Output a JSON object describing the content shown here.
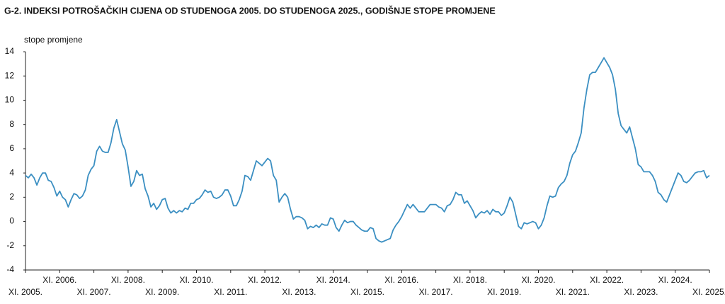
{
  "chart_data": {
    "type": "line",
    "title": "G-2.  INDEKSI POTROŠAČKIH CIJENA OD STUDENOGA 2005. DO STUDENOGA 2025., GODIŠNJE STOPE PROMJENE",
    "y_label": "stope promjene",
    "categories": [
      "XI. 2005.",
      null,
      null,
      null,
      null,
      null,
      null,
      null,
      null,
      null,
      null,
      null,
      "XI. 2006.",
      null,
      null,
      null,
      null,
      null,
      null,
      null,
      null,
      null,
      null,
      null,
      "XI. 2007.",
      null,
      null,
      null,
      null,
      null,
      null,
      null,
      null,
      null,
      null,
      null,
      "XI. 2008.",
      null,
      null,
      null,
      null,
      null,
      null,
      null,
      null,
      null,
      null,
      null,
      "XI. 2009.",
      null,
      null,
      null,
      null,
      null,
      null,
      null,
      null,
      null,
      null,
      null,
      "XI. 2010.",
      null,
      null,
      null,
      null,
      null,
      null,
      null,
      null,
      null,
      null,
      null,
      "XI. 2011.",
      null,
      null,
      null,
      null,
      null,
      null,
      null,
      null,
      null,
      null,
      null,
      "XI. 2012.",
      null,
      null,
      null,
      null,
      null,
      null,
      null,
      null,
      null,
      null,
      null,
      "XI. 2013.",
      null,
      null,
      null,
      null,
      null,
      null,
      null,
      null,
      null,
      null,
      null,
      "XI. 2014.",
      null,
      null,
      null,
      null,
      null,
      null,
      null,
      null,
      null,
      null,
      null,
      "XI. 2015.",
      null,
      null,
      null,
      null,
      null,
      null,
      null,
      null,
      null,
      null,
      null,
      "XI. 2016.",
      null,
      null,
      null,
      null,
      null,
      null,
      null,
      null,
      null,
      null,
      null,
      "XI. 2017.",
      null,
      null,
      null,
      null,
      null,
      null,
      null,
      null,
      null,
      null,
      null,
      "XI. 2018.",
      null,
      null,
      null,
      null,
      null,
      null,
      null,
      null,
      null,
      null,
      null,
      "XI. 2019.",
      null,
      null,
      null,
      null,
      null,
      null,
      null,
      null,
      null,
      null,
      null,
      "XI. 2020.",
      null,
      null,
      null,
      null,
      null,
      null,
      null,
      null,
      null,
      null,
      null,
      "XI. 2021.",
      null,
      null,
      null,
      null,
      null,
      null,
      null,
      null,
      null,
      null,
      null,
      "XI. 2022.",
      null,
      null,
      null,
      null,
      null,
      null,
      null,
      null,
      null,
      null,
      null,
      "XI. 2023.",
      null,
      null,
      null,
      null,
      null,
      null,
      null,
      null,
      null,
      null,
      null,
      "XI. 2024.",
      null,
      null,
      null,
      null,
      null,
      null,
      null,
      null,
      null,
      null,
      null,
      "XI. 2025."
    ],
    "series": [
      {
        "color": "#3b8fc2",
        "values": [
          3.8,
          3.6,
          3.9,
          3.6,
          3.0,
          3.6,
          4.0,
          4.0,
          3.4,
          3.3,
          2.8,
          2.1,
          2.5,
          2.0,
          1.8,
          1.2,
          1.8,
          2.3,
          2.2,
          1.9,
          2.1,
          2.6,
          3.8,
          4.3,
          4.6,
          5.8,
          6.2,
          5.8,
          5.7,
          5.7,
          6.5,
          7.7,
          8.4,
          7.4,
          6.4,
          5.9,
          4.5,
          2.9,
          3.3,
          4.2,
          3.8,
          3.9,
          2.7,
          2.1,
          1.2,
          1.5,
          1.0,
          1.3,
          1.8,
          1.9,
          1.1,
          0.7,
          0.9,
          0.7,
          0.9,
          0.8,
          1.1,
          1.0,
          1.5,
          1.5,
          1.8,
          1.9,
          2.2,
          2.6,
          2.4,
          2.5,
          2.0,
          1.9,
          2.0,
          2.2,
          2.6,
          2.6,
          2.1,
          1.3,
          1.3,
          1.8,
          2.5,
          3.8,
          3.7,
          3.4,
          4.2,
          5.0,
          4.8,
          4.6,
          4.9,
          5.2,
          5.0,
          3.8,
          3.4,
          1.6,
          2.0,
          2.3,
          2.0,
          1.0,
          0.2,
          0.4,
          0.4,
          0.3,
          0.1,
          -0.6,
          -0.4,
          -0.5,
          -0.3,
          -0.5,
          -0.2,
          -0.3,
          -0.3,
          0.3,
          0.2,
          -0.5,
          -0.8,
          -0.3,
          0.1,
          -0.1,
          0.0,
          0.0,
          -0.3,
          -0.5,
          -0.7,
          -0.8,
          -0.8,
          -0.5,
          -0.6,
          -1.4,
          -1.6,
          -1.7,
          -1.6,
          -1.5,
          -1.4,
          -0.7,
          -0.3,
          0.0,
          0.4,
          0.9,
          1.4,
          1.1,
          1.4,
          1.1,
          0.8,
          0.8,
          0.8,
          1.1,
          1.4,
          1.4,
          1.4,
          1.2,
          1.1,
          0.8,
          1.3,
          1.4,
          1.8,
          2.4,
          2.2,
          2.2,
          1.5,
          1.7,
          1.3,
          0.9,
          0.3,
          0.6,
          0.8,
          0.7,
          0.9,
          0.6,
          1.0,
          0.8,
          0.8,
          0.5,
          0.7,
          1.3,
          2.0,
          1.6,
          0.6,
          -0.4,
          -0.6,
          -0.1,
          -0.2,
          -0.1,
          0.0,
          -0.1,
          -0.6,
          -0.3,
          0.3,
          1.3,
          2.1,
          2.0,
          2.1,
          2.8,
          3.1,
          3.3,
          3.8,
          4.8,
          5.5,
          5.8,
          6.5,
          7.3,
          9.4,
          10.9,
          12.1,
          12.3,
          12.3,
          12.7,
          13.1,
          13.5,
          13.1,
          12.7,
          12.1,
          10.9,
          8.9,
          7.9,
          7.6,
          7.3,
          7.8,
          6.9,
          6.0,
          4.7,
          4.5,
          4.1,
          4.1,
          4.1,
          3.8,
          3.3,
          2.4,
          2.2,
          1.8,
          1.6,
          2.2,
          2.8,
          3.4,
          4.0,
          3.8,
          3.3,
          3.2,
          3.4,
          3.7,
          4.0,
          4.1,
          4.1,
          4.2,
          3.6,
          3.8
        ]
      }
    ],
    "ylim": [
      -4,
      14
    ],
    "yticks": [
      -4,
      -2,
      0,
      2,
      4,
      6,
      8,
      10,
      12,
      14
    ],
    "grid": false
  }
}
